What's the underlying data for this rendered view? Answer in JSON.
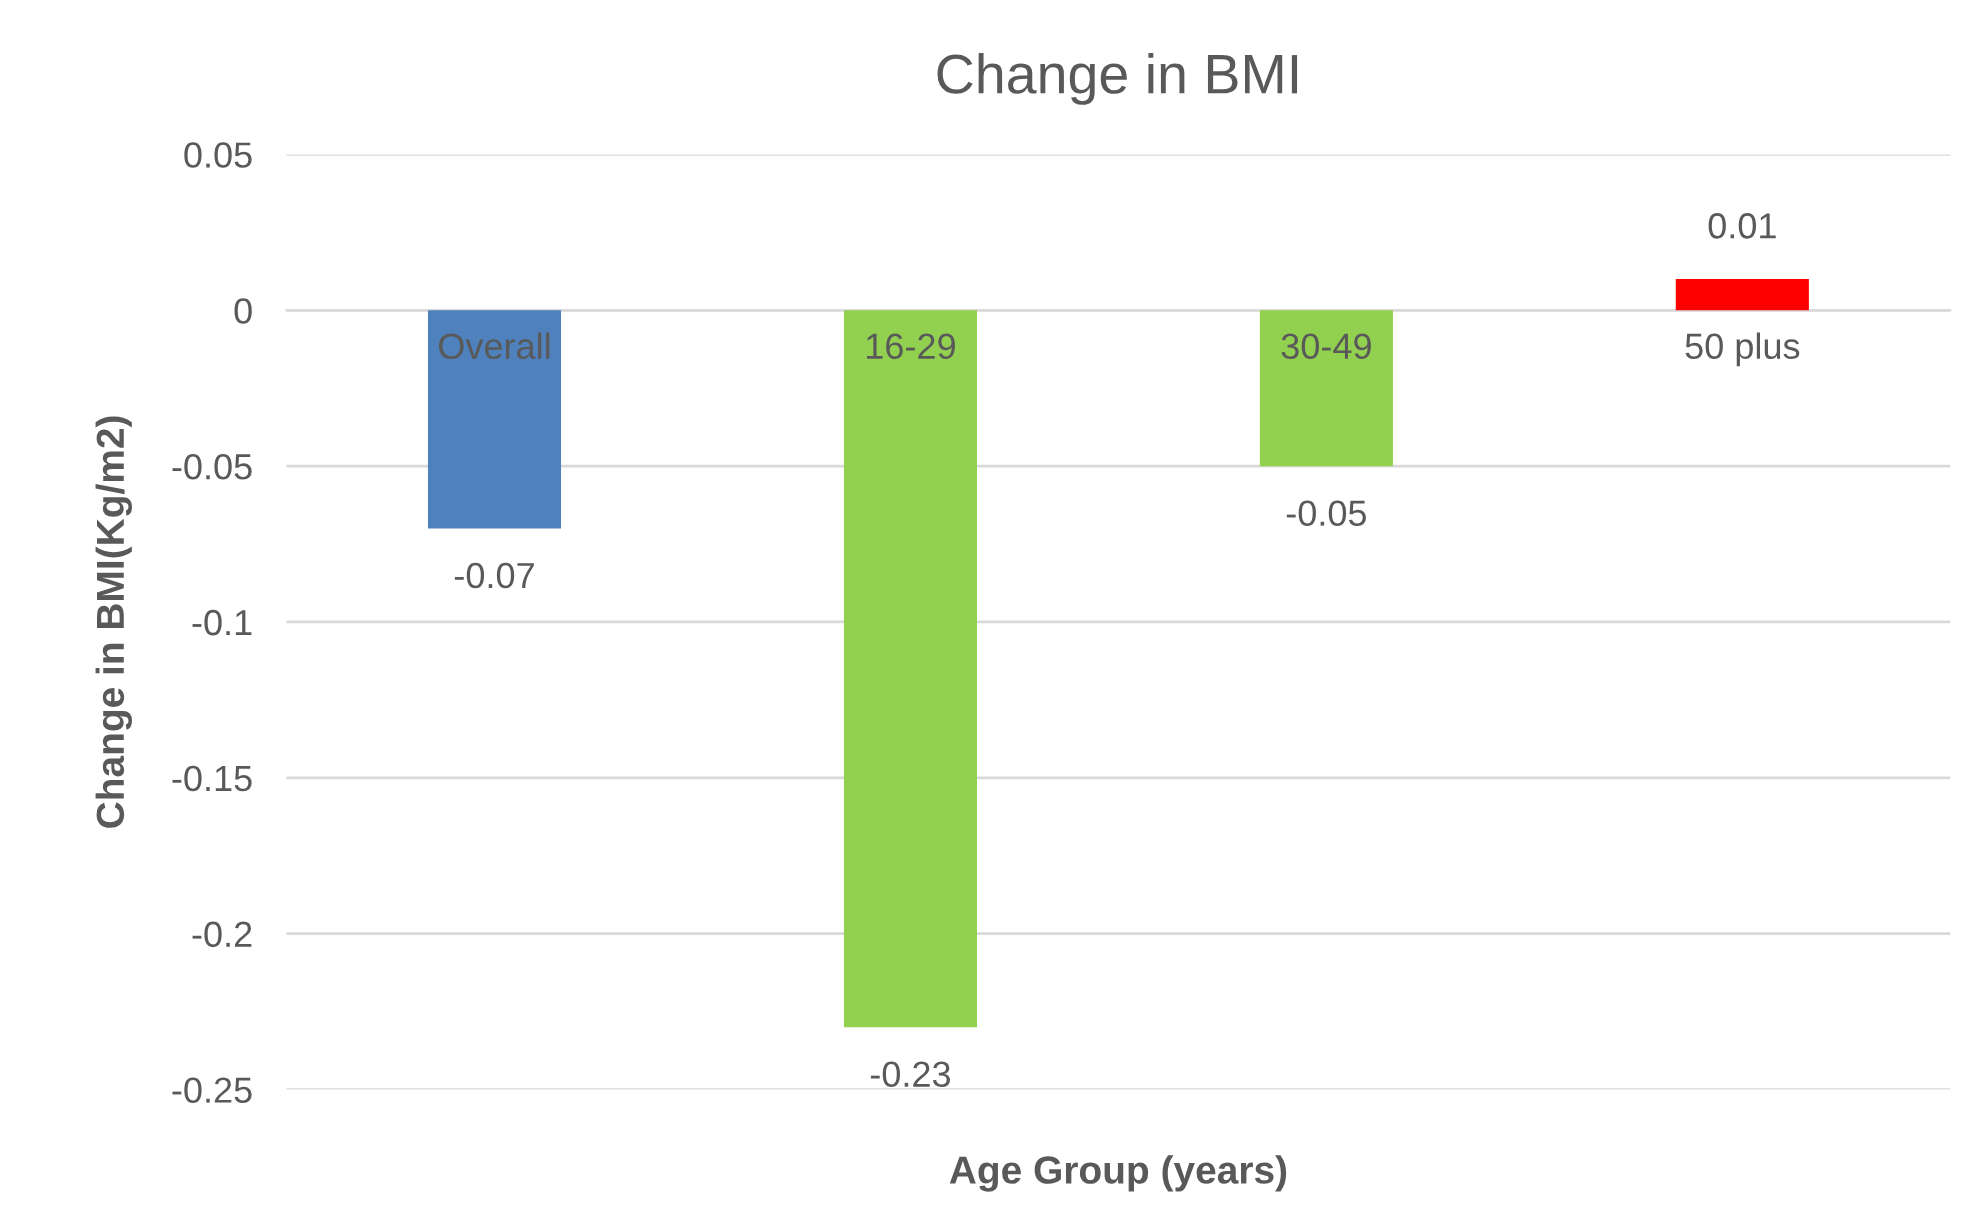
{
  "chart_data": {
    "type": "bar",
    "title": "Change in BMI",
    "xlabel": "Age Group (years)",
    "ylabel": "Change in BMI(Kg/m2)",
    "categories": [
      "Overall",
      "16-29",
      "30-49",
      "50 plus"
    ],
    "values": [
      -0.07,
      -0.23,
      -0.05,
      0.01
    ],
    "colors": [
      "#4f81bd",
      "#92d050",
      "#92d050",
      "#ff0000"
    ],
    "ylim": [
      -0.25,
      0.05
    ],
    "yticks": [
      0.05,
      0,
      -0.05,
      -0.1,
      -0.15,
      -0.2,
      -0.25
    ],
    "grid": "y",
    "data_labels": true,
    "legend": false
  }
}
